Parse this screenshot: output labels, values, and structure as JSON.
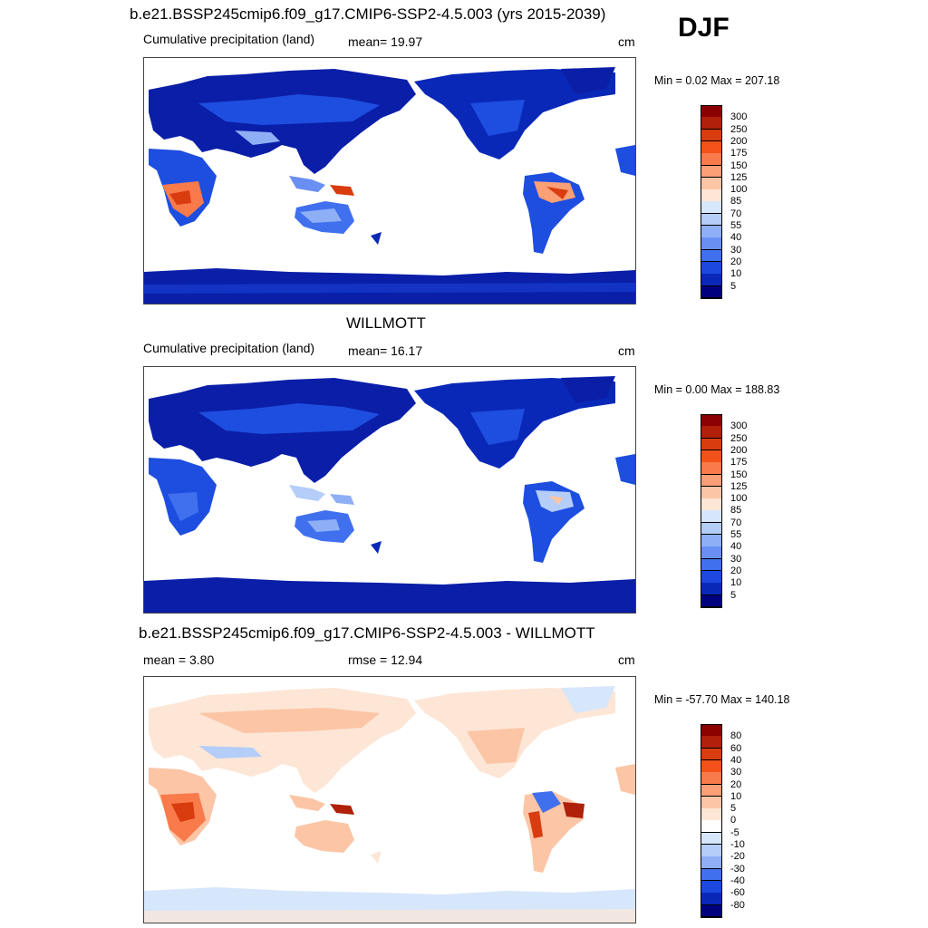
{
  "season_label": "DJF",
  "panels": [
    {
      "title": "b.e21.BSSP245cmip6.f09_g17.CMIP6-SSP2-4.5.003 (yrs 2015-2039)",
      "left_label": "Cumulative precipitation (land)",
      "mid_label": "mean=  19.97",
      "units": "cm",
      "minmax": "Min =   0.02 Max = 207.18",
      "colorbar": {
        "labels": [
          "300",
          "250",
          "200",
          "175",
          "150",
          "125",
          "100",
          "85",
          "70",
          "55",
          "40",
          "30",
          "20",
          "10",
          "5"
        ],
        "colors": [
          "#8b0000",
          "#b0200a",
          "#d93c0f",
          "#f2521a",
          "#f97a4a",
          "#fb9f76",
          "#fcc5a6",
          "#fde6d6",
          "#d6e6fb",
          "#b4cdf9",
          "#8eaff6",
          "#6a8ff2",
          "#4070ee",
          "#1c48e0",
          "#0a28b8",
          "#00007f"
        ]
      }
    },
    {
      "title": "WILLMOTT",
      "left_label": "Cumulative precipitation (land)",
      "mid_label": "mean=  16.17",
      "units": "cm",
      "minmax": "Min =   0.00 Max = 188.83",
      "colorbar": {
        "labels": [
          "300",
          "250",
          "200",
          "175",
          "150",
          "125",
          "100",
          "85",
          "70",
          "55",
          "40",
          "30",
          "20",
          "10",
          "5"
        ],
        "colors": [
          "#8b0000",
          "#b0200a",
          "#d93c0f",
          "#f2521a",
          "#f97a4a",
          "#fb9f76",
          "#fcc5a6",
          "#fde6d6",
          "#d6e6fb",
          "#b4cdf9",
          "#8eaff6",
          "#6a8ff2",
          "#4070ee",
          "#1c48e0",
          "#0a28b8",
          "#00007f"
        ]
      }
    },
    {
      "title": "b.e21.BSSP245cmip6.f09_g17.CMIP6-SSP2-4.5.003 - WILLMOTT",
      "left_label": "mean =   3.80",
      "mid_label": "rmse =  12.94",
      "units": "cm",
      "minmax": "Min = -57.70 Max = 140.18",
      "colorbar": {
        "labels": [
          "80",
          "60",
          "40",
          "30",
          "20",
          "10",
          "5",
          "0",
          "-5",
          "-10",
          "-20",
          "-30",
          "-40",
          "-60",
          "-80"
        ],
        "colors": [
          "#8b0000",
          "#b0200a",
          "#d93c0f",
          "#f2521a",
          "#f97a4a",
          "#fb9f76",
          "#fcc5a6",
          "#fde6d6",
          "#ffffff",
          "#d6e6fb",
          "#b4cdf9",
          "#8eaff6",
          "#4070ee",
          "#1c48e0",
          "#0a28b8",
          "#00007f"
        ]
      }
    }
  ],
  "map_colors": {
    "dark_blue": "#0a1ea8",
    "mid_blue": "#1e4ee0",
    "light_blue": "#6a8ff2",
    "pale": "#fde6d6",
    "orange": "#f97a4a",
    "red": "#c02a0c",
    "ocean": "#ffffff"
  }
}
